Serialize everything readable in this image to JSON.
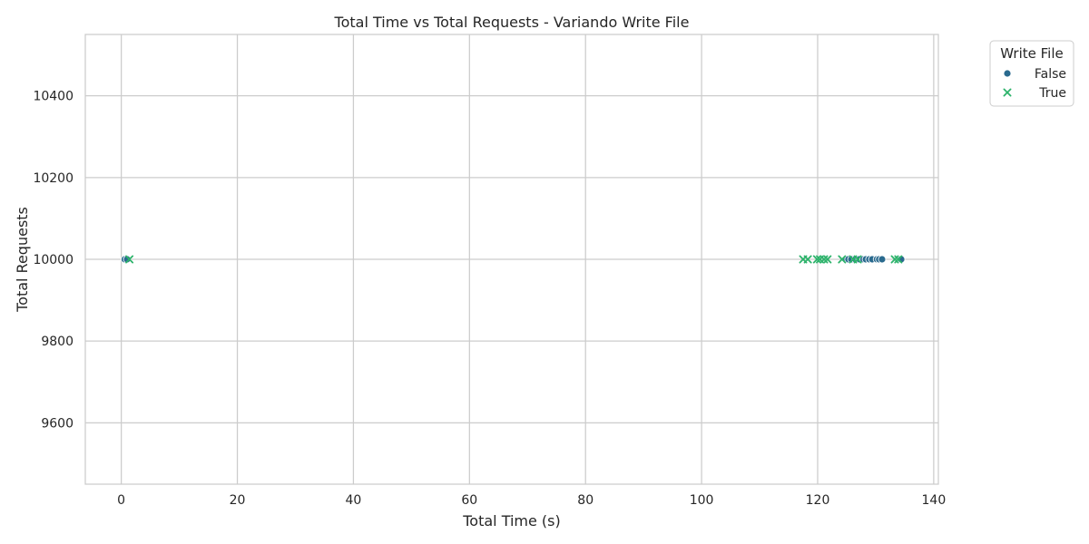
{
  "chart_data": {
    "type": "scatter",
    "title": "Total Time vs Total Requests - Variando Write File",
    "xlabel": "Total Time (s)",
    "ylabel": "Total Requests",
    "xlim": [
      -6.2,
      140.8
    ],
    "ylim": [
      9450,
      10550
    ],
    "xticks": [
      0,
      20,
      40,
      60,
      80,
      100,
      120,
      140
    ],
    "yticks": [
      9600,
      9800,
      10000,
      10200,
      10400
    ],
    "grid": true,
    "legend": {
      "title": "Write File",
      "placement": "outside-top-right",
      "entries": [
        "False",
        "True"
      ]
    },
    "series": [
      {
        "name": "False",
        "marker": "circle",
        "color": "#2a6a8e",
        "points": [
          {
            "x": 0.6,
            "y": 10000
          },
          {
            "x": 1.0,
            "y": 10000
          },
          {
            "x": 124.9,
            "y": 10000
          },
          {
            "x": 125.3,
            "y": 10000
          },
          {
            "x": 125.8,
            "y": 10000
          },
          {
            "x": 126.5,
            "y": 10000
          },
          {
            "x": 127.2,
            "y": 10000
          },
          {
            "x": 127.9,
            "y": 10000
          },
          {
            "x": 128.3,
            "y": 10000
          },
          {
            "x": 128.9,
            "y": 10000
          },
          {
            "x": 129.4,
            "y": 10000
          },
          {
            "x": 130.2,
            "y": 10000
          },
          {
            "x": 130.6,
            "y": 10000
          },
          {
            "x": 131.1,
            "y": 10000
          },
          {
            "x": 134.4,
            "y": 10000
          }
        ]
      },
      {
        "name": "True",
        "marker": "x",
        "color": "#2db36b",
        "points": [
          {
            "x": 1.4,
            "y": 10000
          },
          {
            "x": 117.5,
            "y": 10000
          },
          {
            "x": 118.3,
            "y": 10000
          },
          {
            "x": 119.9,
            "y": 10000
          },
          {
            "x": 120.4,
            "y": 10000
          },
          {
            "x": 121.1,
            "y": 10000
          },
          {
            "x": 121.7,
            "y": 10000
          },
          {
            "x": 124.2,
            "y": 10000
          },
          {
            "x": 126.1,
            "y": 10000
          },
          {
            "x": 126.9,
            "y": 10000
          },
          {
            "x": 133.3,
            "y": 10000
          },
          {
            "x": 133.9,
            "y": 10000
          }
        ]
      }
    ]
  }
}
